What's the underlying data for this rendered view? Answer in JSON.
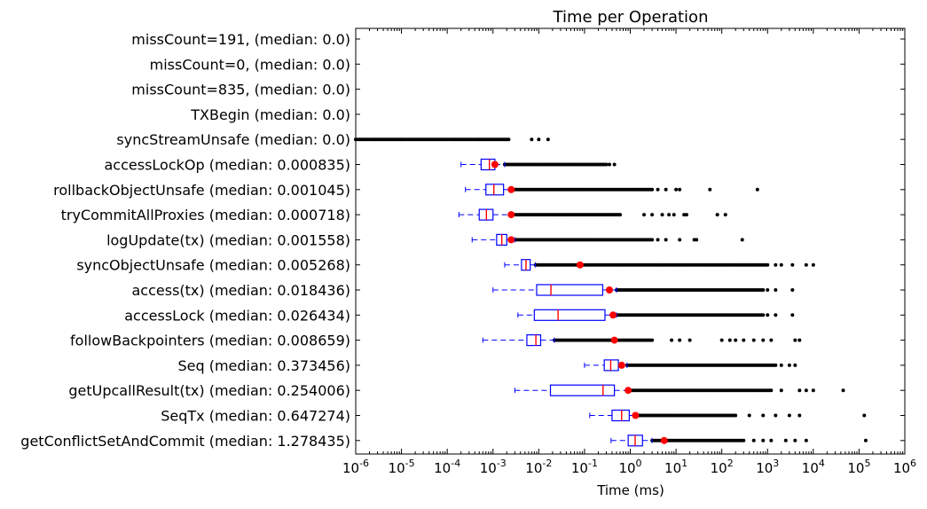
{
  "chart_data": {
    "type": "boxplot",
    "title": "Time per Operation",
    "xlabel": "Time (ms)",
    "xscale": "log",
    "xlim": [
      1e-06,
      1000000.0
    ],
    "x_ticks": [
      {
        "base": "10",
        "exp": "-6",
        "value": 1e-06
      },
      {
        "base": "10",
        "exp": "-5",
        "value": 1e-05
      },
      {
        "base": "10",
        "exp": "-4",
        "value": 0.0001
      },
      {
        "base": "10",
        "exp": "-3",
        "value": 0.001
      },
      {
        "base": "10",
        "exp": "-2",
        "value": 0.01
      },
      {
        "base": "10",
        "exp": "-1",
        "value": 0.1
      },
      {
        "base": "10",
        "exp": "0",
        "value": 1
      },
      {
        "base": "10",
        "exp": "1",
        "value": 10
      },
      {
        "base": "10",
        "exp": "2",
        "value": 100
      },
      {
        "base": "10",
        "exp": "3",
        "value": 1000
      },
      {
        "base": "10",
        "exp": "4",
        "value": 10000
      },
      {
        "base": "10",
        "exp": "5",
        "value": 100000
      },
      {
        "base": "10",
        "exp": "6",
        "value": 1000000
      }
    ],
    "colors": {
      "box": "#0000ff",
      "median": "#ff0000",
      "mean": "#ff0000",
      "flier": "#000000"
    },
    "series": [
      {
        "label": "missCount=191, (median: 0.0)",
        "empty": true
      },
      {
        "label": "missCount=0, (median: 0.0)",
        "empty": true
      },
      {
        "label": "missCount=835, (median: 0.0)",
        "empty": true
      },
      {
        "label": "TXBegin (median: 0.0)",
        "empty": true
      },
      {
        "label": "syncStreamUnsafe (median: 0.0)",
        "flier_range": [
          1e-06,
          0.0022
        ],
        "flier_extra": [
          0.007,
          0.01,
          0.016
        ]
      },
      {
        "label": "accessLockOp (median: 0.000835)",
        "whisker_low": 0.0002,
        "q1": 0.00055,
        "median": 0.000835,
        "q3": 0.0011,
        "whisker_high": 0.0018,
        "mean": 0.0011,
        "flier_range": [
          0.0018,
          0.3
        ],
        "flier_extra": [
          0.35,
          0.45
        ]
      },
      {
        "label": "rollbackObjectUnsafe (median: 0.001045)",
        "whisker_low": 0.00025,
        "q1": 0.0007,
        "median": 0.001045,
        "q3": 0.0017,
        "whisker_high": 0.0025,
        "mean": 0.0025,
        "flier_range": [
          0.0025,
          3.0
        ],
        "flier_extra": [
          4.0,
          6.0,
          10,
          12,
          55,
          600
        ]
      },
      {
        "label": "tryCommitAllProxies (median: 0.000718)",
        "whisker_low": 0.00018,
        "q1": 0.0005,
        "median": 0.000718,
        "q3": 0.001,
        "whisker_high": 0.0025,
        "mean": 0.0025,
        "flier_range": [
          0.0025,
          0.6
        ],
        "flier_extra": [
          2.0,
          3.0,
          5.0,
          7.0,
          9.0,
          15,
          17,
          80,
          120
        ]
      },
      {
        "label": "logUpdate(tx) (median: 0.001558)",
        "whisker_low": 0.00035,
        "q1": 0.0012,
        "median": 0.001558,
        "q3": 0.002,
        "whisker_high": 0.003,
        "mean": 0.0025,
        "flier_range": [
          0.003,
          3.0
        ],
        "flier_extra": [
          4.0,
          6.0,
          12,
          25,
          28,
          280
        ]
      },
      {
        "label": "syncObjectUnsafe (median: 0.005268)",
        "whisker_low": 0.0018,
        "q1": 0.0042,
        "median": 0.005268,
        "q3": 0.0065,
        "whisker_high": 0.0085,
        "mean": 0.08,
        "flier_range": [
          0.0085,
          1000
        ],
        "flier_extra": [
          1500,
          2000,
          3500,
          7000,
          10000
        ]
      },
      {
        "label": "access(tx) (median: 0.018436)",
        "whisker_low": 0.001,
        "q1": 0.009,
        "median": 0.018436,
        "q3": 0.25,
        "whisker_high": 0.5,
        "mean": 0.35,
        "flier_range": [
          0.5,
          800
        ],
        "flier_extra": [
          1000,
          1500,
          3500
        ]
      },
      {
        "label": "accessLock (median: 0.026434)",
        "whisker_low": 0.0035,
        "q1": 0.008,
        "median": 0.026434,
        "q3": 0.28,
        "whisker_high": 0.5,
        "mean": 0.42,
        "flier_range": [
          0.5,
          800
        ],
        "flier_extra": [
          1000,
          1500,
          3500
        ]
      },
      {
        "label": "followBackpointers (median: 0.008659)",
        "whisker_low": 0.0006,
        "q1": 0.0055,
        "median": 0.008659,
        "q3": 0.011,
        "whisker_high": 0.022,
        "mean": 0.45,
        "flier_range": [
          0.022,
          3.0
        ],
        "flier_extra": [
          8,
          12,
          20,
          100,
          150,
          200,
          300,
          500,
          800,
          1200,
          4000,
          5000
        ]
      },
      {
        "label": "Seq (median: 0.373456)",
        "whisker_low": 0.1,
        "q1": 0.27,
        "median": 0.373456,
        "q3": 0.55,
        "whisker_high": 0.85,
        "mean": 0.65,
        "flier_range": [
          0.85,
          1500
        ],
        "flier_extra": [
          2000,
          3000,
          4000
        ]
      },
      {
        "label": "getUpcallResult(tx) (median: 0.254006)",
        "whisker_low": 0.003,
        "q1": 0.018,
        "median": 0.254006,
        "q3": 0.45,
        "whisker_high": 0.9,
        "mean": 0.9,
        "flier_range": [
          0.9,
          1200
        ],
        "flier_extra": [
          2000,
          5000,
          7000,
          10000,
          45000
        ]
      },
      {
        "label": "SeqTx (median: 0.647274)",
        "whisker_low": 0.13,
        "q1": 0.4,
        "median": 0.647274,
        "q3": 0.95,
        "whisker_high": 1.4,
        "mean": 1.3,
        "flier_range": [
          1.4,
          200
        ],
        "flier_extra": [
          400,
          800,
          1500,
          3000,
          5000,
          130000
        ]
      },
      {
        "label": "getConflictSetAndCommit (median: 1.278435)",
        "whisker_low": 0.38,
        "q1": 0.9,
        "median": 1.278435,
        "q3": 1.85,
        "whisker_high": 3.0,
        "mean": 5.5,
        "flier_range": [
          3.0,
          300
        ],
        "flier_extra": [
          500,
          800,
          1200,
          2500,
          4000,
          7000,
          140000
        ]
      }
    ]
  }
}
